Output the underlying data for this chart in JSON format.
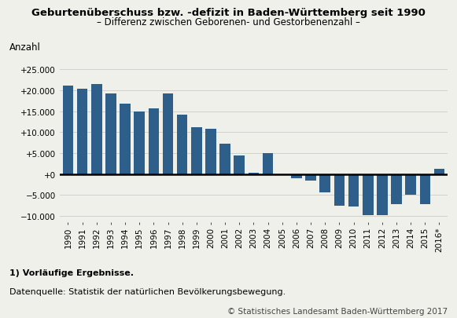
{
  "years": [
    "1990",
    "1991",
    "1992",
    "1993",
    "1994",
    "1995",
    "1996",
    "1997",
    "1998",
    "1999",
    "2000",
    "2001",
    "2002",
    "2003",
    "2004",
    "2005",
    "2006",
    "2007",
    "2008",
    "2009",
    "2010",
    "2011",
    "2012",
    "2013",
    "2014",
    "2015",
    "2016*"
  ],
  "values": [
    21000,
    20300,
    21500,
    19200,
    16700,
    14900,
    15700,
    19200,
    14200,
    11100,
    10800,
    7200,
    4500,
    300,
    5000,
    -200,
    -900,
    -1500,
    -4300,
    -7500,
    -7700,
    -9700,
    -9800,
    -7200,
    -5000,
    -7100,
    1200
  ],
  "bar_color": "#2e5f8a",
  "title": "Geburtenüberschuss bzw. -defizit in Baden-Württemberg seit 1990",
  "subtitle": "– Differenz zwischen Geborenen- und Gestorbenenzahl –",
  "ylabel": "Anzahl",
  "ylim": [
    -11500,
    28000
  ],
  "yticks": [
    -10000,
    -5000,
    0,
    5000,
    10000,
    15000,
    20000,
    25000
  ],
  "ytick_labels": [
    "−10.000",
    "−5.000",
    "+0",
    "+5.000",
    "+10.000",
    "+15.000",
    "+20.000",
    "+25.000"
  ],
  "footnote1": "1) Vorläufige Ergebnisse.",
  "footnote2": "Datenquelle: Statistik der natürlichen Bevölkerungsbewegung.",
  "copyright": "© Statistisches Landesamt Baden-Württemberg 2017",
  "background_color": "#f0f0eb",
  "grid_color": "#cccccc",
  "title_fontsize": 9.5,
  "subtitle_fontsize": 8.5,
  "axis_label_fontsize": 8.5,
  "tick_fontsize": 7.5,
  "footnote_fontsize": 8,
  "copyright_fontsize": 7.5
}
